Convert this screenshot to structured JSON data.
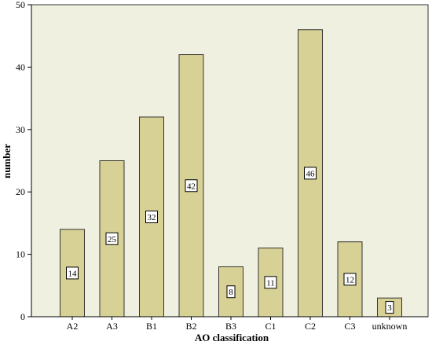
{
  "chart_data": {
    "type": "bar",
    "xlabel": "AO classification",
    "ylabel": "number",
    "categories": [
      "A2",
      "A3",
      "B1",
      "B2",
      "B3",
      "C1",
      "C2",
      "C3",
      "unknown"
    ],
    "values": [
      14,
      25,
      32,
      42,
      8,
      11,
      46,
      12,
      3
    ],
    "data_labels": [
      "14",
      "25",
      "32",
      "42",
      "8",
      "11",
      "46",
      "12",
      "3"
    ],
    "ylim": [
      0,
      50
    ],
    "yticks": [
      0,
      10,
      20,
      30,
      40,
      50
    ],
    "ytick_labels": [
      "0",
      "10",
      "20",
      "30",
      "40",
      "50"
    ],
    "grid": false,
    "legend": "none",
    "colors": {
      "plot_background": "#f0f0e0",
      "bar_fill": "#d7d195",
      "bar_stroke": "#333333",
      "label_box": "#ffffff"
    }
  }
}
